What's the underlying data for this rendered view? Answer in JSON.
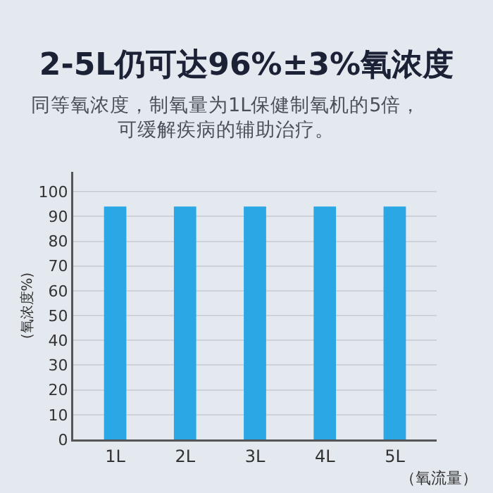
{
  "chart_data": {
    "type": "bar",
    "title": "2-5L仍可达96%±3%氧浓度",
    "subtitle": "同等氧浓度，制氧量为1L保健制氧机的5倍，可缓解疾病的辅助治疗。",
    "xlabel": "（氧流量）",
    "ylabel": "(氧浓度%)",
    "categories": [
      "1L",
      "2L",
      "3L",
      "4L",
      "5L"
    ],
    "values": [
      94,
      94,
      94,
      94,
      94
    ],
    "color": "#2aa8e6",
    "ylim": [
      0,
      108
    ],
    "yticks": [
      0,
      10,
      20,
      30,
      40,
      50,
      60,
      70,
      80,
      90,
      100
    ],
    "grid": "y"
  }
}
